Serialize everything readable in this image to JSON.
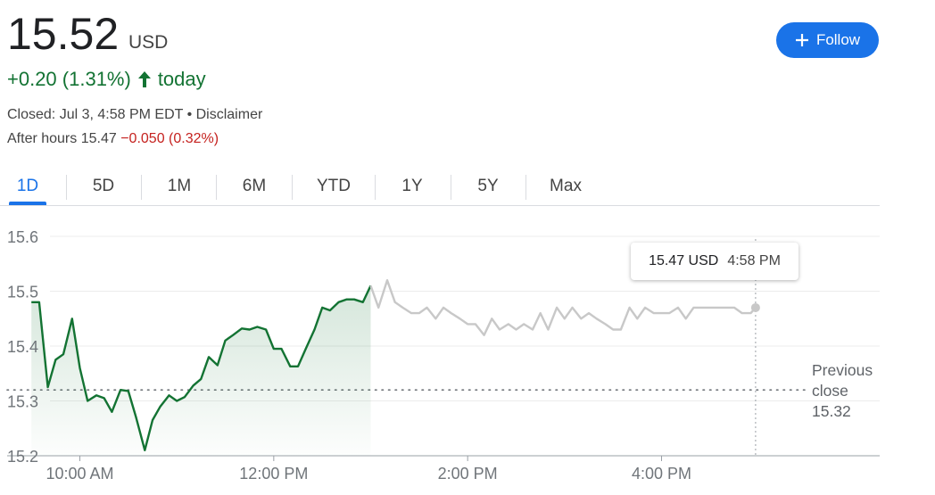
{
  "quote": {
    "price": "15.52",
    "currency": "USD",
    "change": "+0.20 (1.31%)",
    "change_suffix": "today",
    "closed_text": "Closed: Jul 3, 4:58 PM EDT • Disclaimer",
    "after_hours_label": "After hours 15.47",
    "after_hours_change": "−0.050 (0.32%)"
  },
  "follow_button": {
    "label": "Follow",
    "icon": "plus-icon"
  },
  "tabs": [
    {
      "label": "1D",
      "active": true
    },
    {
      "label": "5D"
    },
    {
      "label": "1M"
    },
    {
      "label": "6M"
    },
    {
      "label": "YTD"
    },
    {
      "label": "1Y"
    },
    {
      "label": "5Y"
    },
    {
      "label": "Max"
    }
  ],
  "tooltip": {
    "price": "15.47 USD",
    "time": "4:58 PM"
  },
  "previous_close_label": {
    "line1": "Previous",
    "line2": "close",
    "value": "15.32"
  },
  "colors": {
    "up": "#137333",
    "down": "#c5221f",
    "accent": "#1a73e8",
    "after_hours_line": "#c8c8c8"
  },
  "chart_data": {
    "type": "line",
    "x_unit": "hours (24h clock)",
    "xlim": [
      9.25,
      18.25
    ],
    "ylim": [
      15.2,
      15.6
    ],
    "y_ticks": [
      "15.6",
      "15.5",
      "15.4",
      "15.3",
      "15.2"
    ],
    "x_ticks": [
      {
        "value": 10,
        "label": "10:00 AM"
      },
      {
        "value": 12,
        "label": "12:00 PM"
      },
      {
        "value": 14,
        "label": "2:00 PM"
      },
      {
        "value": 16,
        "label": "4:00 PM"
      }
    ],
    "previous_close": 15.32,
    "series": [
      {
        "session": "regular",
        "points": [
          [
            9.5,
            15.48
          ],
          [
            9.58,
            15.48
          ],
          [
            9.67,
            15.325
          ],
          [
            9.75,
            15.375
          ],
          [
            9.83,
            15.385
          ],
          [
            9.92,
            15.45
          ],
          [
            10.0,
            15.36
          ],
          [
            10.08,
            15.3
          ],
          [
            10.17,
            15.31
          ],
          [
            10.25,
            15.305
          ],
          [
            10.33,
            15.28
          ],
          [
            10.42,
            15.32
          ],
          [
            10.5,
            15.318
          ],
          [
            10.58,
            15.27
          ],
          [
            10.67,
            15.21
          ],
          [
            10.75,
            15.265
          ],
          [
            10.83,
            15.29
          ],
          [
            10.92,
            15.31
          ],
          [
            11.0,
            15.3
          ],
          [
            11.08,
            15.307
          ],
          [
            11.17,
            15.328
          ],
          [
            11.25,
            15.34
          ],
          [
            11.33,
            15.38
          ],
          [
            11.42,
            15.365
          ],
          [
            11.5,
            15.41
          ],
          [
            11.58,
            15.42
          ],
          [
            11.67,
            15.432
          ],
          [
            11.75,
            15.43
          ],
          [
            11.83,
            15.435
          ],
          [
            11.92,
            15.43
          ],
          [
            12.0,
            15.395
          ],
          [
            12.08,
            15.395
          ],
          [
            12.17,
            15.363
          ],
          [
            12.25,
            15.363
          ],
          [
            12.33,
            15.395
          ],
          [
            12.42,
            15.43
          ],
          [
            12.5,
            15.47
          ],
          [
            12.58,
            15.465
          ],
          [
            12.67,
            15.48
          ],
          [
            12.75,
            15.485
          ],
          [
            12.83,
            15.485
          ],
          [
            12.92,
            15.48
          ],
          [
            13.0,
            15.51
          ]
        ]
      },
      {
        "session": "after-hours",
        "points": [
          [
            13.0,
            15.51
          ],
          [
            13.08,
            15.47
          ],
          [
            13.17,
            15.52
          ],
          [
            13.25,
            15.48
          ],
          [
            13.33,
            15.47
          ],
          [
            13.42,
            15.46
          ],
          [
            13.5,
            15.46
          ],
          [
            13.58,
            15.47
          ],
          [
            13.67,
            15.45
          ],
          [
            13.75,
            15.47
          ],
          [
            13.83,
            15.46
          ],
          [
            13.92,
            15.45
          ],
          [
            14.0,
            15.44
          ],
          [
            14.08,
            15.44
          ],
          [
            14.17,
            15.42
          ],
          [
            14.25,
            15.45
          ],
          [
            14.33,
            15.43
          ],
          [
            14.42,
            15.44
          ],
          [
            14.5,
            15.43
          ],
          [
            14.58,
            15.44
          ],
          [
            14.67,
            15.43
          ],
          [
            14.75,
            15.46
          ],
          [
            14.83,
            15.43
          ],
          [
            14.92,
            15.47
          ],
          [
            15.0,
            15.45
          ],
          [
            15.08,
            15.47
          ],
          [
            15.17,
            15.45
          ],
          [
            15.25,
            15.46
          ],
          [
            15.33,
            15.45
          ],
          [
            15.42,
            15.44
          ],
          [
            15.5,
            15.43
          ],
          [
            15.58,
            15.43
          ],
          [
            15.67,
            15.47
          ],
          [
            15.75,
            15.45
          ],
          [
            15.83,
            15.47
          ],
          [
            15.92,
            15.46
          ],
          [
            16.0,
            15.46
          ],
          [
            16.08,
            15.46
          ],
          [
            16.17,
            15.47
          ],
          [
            16.25,
            15.45
          ],
          [
            16.33,
            15.47
          ],
          [
            16.42,
            15.47
          ],
          [
            16.5,
            15.47
          ],
          [
            16.58,
            15.47
          ],
          [
            16.67,
            15.47
          ],
          [
            16.75,
            15.47
          ],
          [
            16.83,
            15.46
          ],
          [
            16.92,
            15.46
          ],
          [
            16.97,
            15.47
          ]
        ]
      }
    ],
    "marker": [
      16.97,
      15.47
    ]
  }
}
